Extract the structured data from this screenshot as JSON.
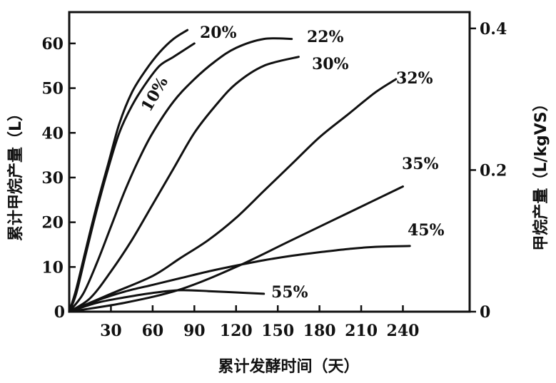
{
  "chart_data": {
    "type": "line",
    "xlabel": "累计发酵时间（天）",
    "ylabel": "累计甲烷产量（L）",
    "y2label": "甲烷产量（L/kgVS）",
    "xlim": [
      0,
      288
    ],
    "ylim": [
      0,
      67
    ],
    "y2lim": [
      0,
      0.423
    ],
    "grid": false,
    "x_ticks": [
      "0",
      "30",
      "60",
      "90",
      "120",
      "150",
      "180",
      "210",
      "240"
    ],
    "y_ticks": [
      "0",
      "10",
      "20",
      "30",
      "40",
      "50",
      "60"
    ],
    "y2_ticks": [
      "0",
      "0.2",
      "0.4"
    ],
    "series": [
      {
        "name": "20%",
        "x": [
          0,
          5,
          12,
          20,
          28,
          36,
          45,
          55,
          65,
          75,
          85
        ],
        "y": [
          0,
          5,
          14,
          24,
          33,
          42,
          49,
          54,
          58,
          61,
          63
        ]
      },
      {
        "name": "10%",
        "x": [
          0,
          5,
          12,
          20,
          28,
          36,
          45,
          55,
          65,
          75,
          90
        ],
        "y": [
          0,
          4,
          13,
          23,
          32,
          40,
          46,
          51,
          55,
          57,
          60
        ]
      },
      {
        "name": "22%",
        "x": [
          0,
          10,
          20,
          30,
          40,
          50,
          60,
          75,
          90,
          105,
          120,
          140,
          160
        ],
        "y": [
          0,
          4,
          11,
          19,
          27,
          34,
          40,
          47,
          52,
          56,
          59,
          61,
          61
        ]
      },
      {
        "name": "30%",
        "x": [
          0,
          15,
          30,
          45,
          60,
          75,
          90,
          105,
          120,
          140,
          165
        ],
        "y": [
          0,
          3,
          9,
          16,
          24,
          32,
          40,
          46,
          51,
          55,
          57
        ]
      },
      {
        "name": "32%",
        "x": [
          0,
          30,
          60,
          80,
          100,
          120,
          140,
          160,
          180,
          200,
          220,
          235
        ],
        "y": [
          0,
          4,
          8,
          12,
          16,
          21,
          27,
          33,
          39,
          44,
          49,
          52
        ]
      },
      {
        "name": "35%",
        "x": [
          0,
          40,
          80,
          120,
          160,
          200,
          240
        ],
        "y": [
          0,
          2,
          5,
          10,
          16,
          22,
          28
        ]
      },
      {
        "name": "45%",
        "x": [
          0,
          20,
          40,
          60,
          80,
          100,
          120,
          140,
          160,
          180,
          200,
          220,
          245
        ],
        "y": [
          0,
          2.5,
          4.5,
          6,
          7.5,
          9,
          10.3,
          11.5,
          12.5,
          13.3,
          14,
          14.5,
          14.7
        ]
      },
      {
        "name": "55%",
        "x": [
          0,
          20,
          40,
          60,
          80,
          100,
          120,
          140
        ],
        "y": [
          0,
          2,
          3.2,
          4.2,
          4.8,
          4.6,
          4.3,
          4
        ]
      }
    ]
  }
}
